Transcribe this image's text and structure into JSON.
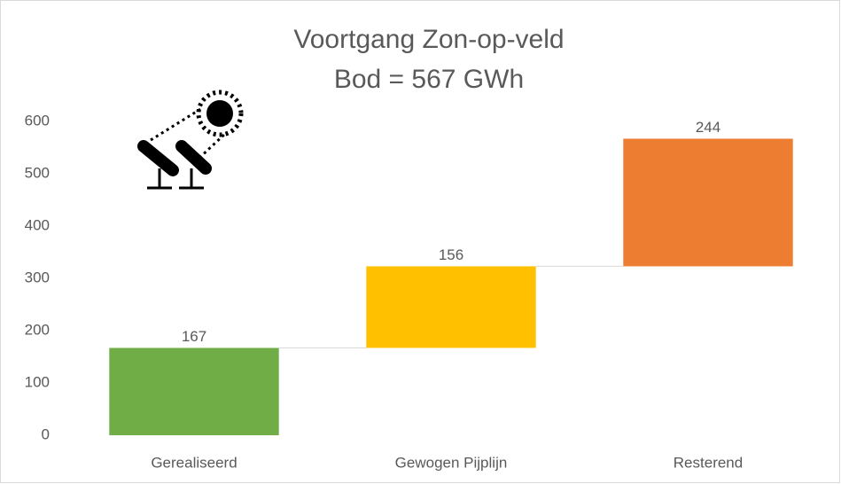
{
  "chart_data": {
    "type": "waterfall",
    "title": "Voortgang Zon-op-veld",
    "subtitle": "Bod = 567 GWh",
    "categories": [
      "Gerealiseerd",
      "Gewogen Pijplijn",
      "Resterend"
    ],
    "values": [
      167,
      156,
      244
    ],
    "colors": [
      "#70ad47",
      "#ffc000",
      "#ed7d31"
    ],
    "ylim": [
      0,
      600
    ],
    "yticks": [
      0,
      100,
      200,
      300,
      400,
      500,
      600
    ],
    "grid": false
  }
}
